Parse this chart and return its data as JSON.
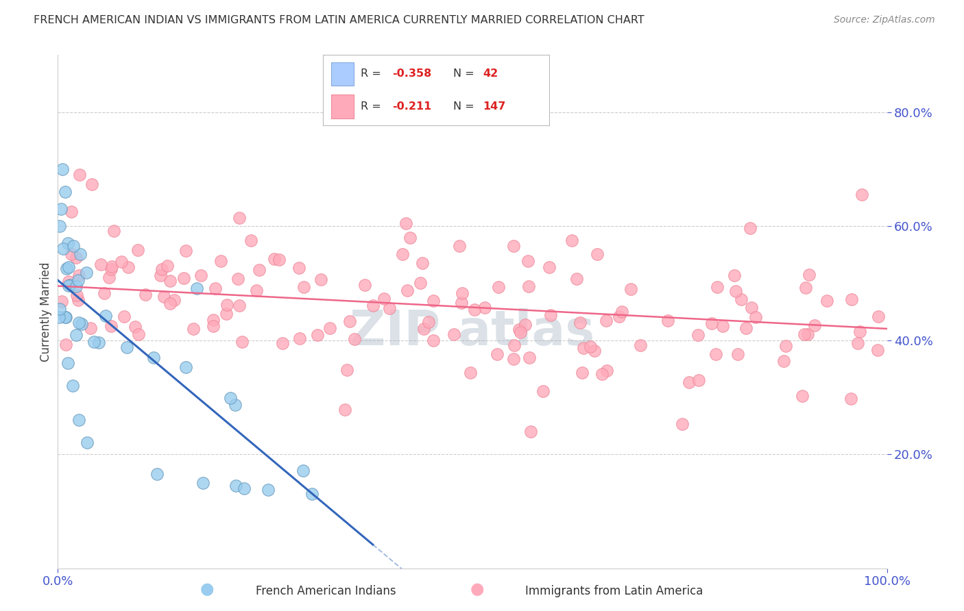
{
  "title": "FRENCH AMERICAN INDIAN VS IMMIGRANTS FROM LATIN AMERICA CURRENTLY MARRIED CORRELATION CHART",
  "source": "Source: ZipAtlas.com",
  "ylabel": "Currently Married",
  "xlim": [
    0.0,
    1.0
  ],
  "ylim": [
    0.0,
    0.9
  ],
  "yticks": [
    0.2,
    0.4,
    0.6,
    0.8
  ],
  "ytick_labels": [
    "20.0%",
    "40.0%",
    "60.0%",
    "80.0%"
  ],
  "xticks": [
    0.0,
    1.0
  ],
  "xtick_labels": [
    "0.0%",
    "100.0%"
  ],
  "background_color": "#ffffff",
  "grid_color": "#cccccc",
  "title_color": "#333333",
  "tick_color": "#4455cc",
  "legend": {
    "series1_color": "#aaccff",
    "series1_edge": "#88aadd",
    "series2_color": "#ffaabb",
    "series2_edge": "#ee8899",
    "series1_label": "French American Indians",
    "series2_label": "Immigrants from Latin America",
    "R1": "-0.358",
    "N1": "42",
    "R2": "-0.211",
    "N2": "147",
    "text_color": "#333333",
    "value_color": "#dd2222"
  },
  "series1": {
    "dot_color": "#99ccee",
    "dot_edge_color": "#6699bb",
    "line_color": "#3366bb",
    "line_solid_end": 0.38,
    "intercept": 0.505,
    "slope": -1.22
  },
  "series2": {
    "dot_color": "#ffaabb",
    "dot_edge_color": "#ee8899",
    "line_color": "#ee6688",
    "intercept": 0.495,
    "slope": -0.075
  },
  "watermark": "ZIP atlas",
  "watermark_color": "#99aabb",
  "watermark_alpha": 0.35,
  "watermark_fontsize": 52
}
